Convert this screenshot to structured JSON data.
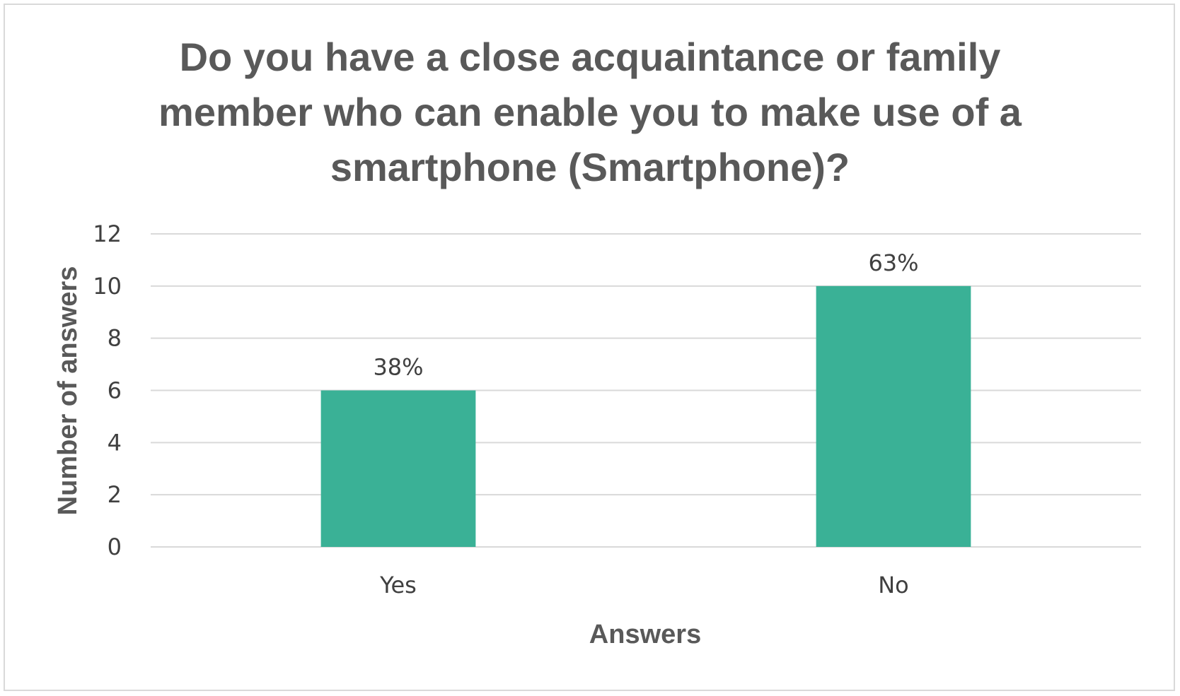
{
  "chart_data": {
    "type": "bar",
    "title_lines": [
      "Do you have a close acquaintance or family",
      "member who can enable you to make use of a",
      "smartphone (Smartphone)?"
    ],
    "categories": [
      "Yes",
      "No"
    ],
    "values": [
      6,
      10
    ],
    "data_labels": [
      "38%",
      "63%"
    ],
    "xlabel": "Answers",
    "ylabel": "Number of answers",
    "ylim": [
      0,
      12
    ],
    "yticks": [
      "0",
      "2",
      "4",
      "6",
      "8",
      "10",
      "12"
    ],
    "grid": true,
    "legend": "none",
    "bar_color": "#3ab196"
  }
}
